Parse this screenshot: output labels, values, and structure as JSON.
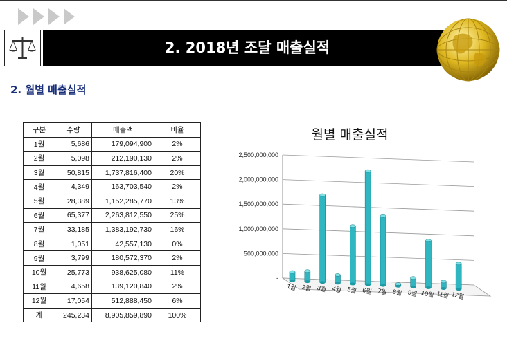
{
  "header": {
    "title": "2. 2018년 조달 매출실적"
  },
  "section_title": "2. 월별 매출실적",
  "table": {
    "headers": [
      "구분",
      "수량",
      "매출액",
      "비율"
    ],
    "rows": [
      [
        "1월",
        "5,686",
        "179,094,900",
        "2%"
      ],
      [
        "2월",
        "5,098",
        "212,190,130",
        "2%"
      ],
      [
        "3월",
        "50,815",
        "1,737,816,400",
        "20%"
      ],
      [
        "4월",
        "4,349",
        "163,703,540",
        "2%"
      ],
      [
        "5월",
        "28,389",
        "1,152,285,770",
        "13%"
      ],
      [
        "6월",
        "65,377",
        "2,263,812,550",
        "25%"
      ],
      [
        "7월",
        "33,185",
        "1,383,192,730",
        "16%"
      ],
      [
        "8월",
        "1,051",
        "42,557,130",
        "0%"
      ],
      [
        "9월",
        "3,799",
        "180,572,370",
        "2%"
      ],
      [
        "10월",
        "25,773",
        "938,625,080",
        "11%"
      ],
      [
        "11월",
        "4,658",
        "139,120,840",
        "2%"
      ],
      [
        "12월",
        "17,054",
        "512,888,450",
        "6%"
      ],
      [
        "계",
        "245,234",
        "8,905,859,890",
        "100%"
      ]
    ]
  },
  "chart_data": {
    "type": "bar",
    "title": "월별 매출실적",
    "categories": [
      "1월",
      "2월",
      "3월",
      "4월",
      "5월",
      "6월",
      "7월",
      "8월",
      "9월",
      "10월",
      "11월",
      "12월"
    ],
    "values": [
      179094900,
      212190130,
      1737816400,
      163703540,
      1152285770,
      2263812550,
      1383192730,
      42557130,
      180572370,
      938625080,
      139120840,
      512888450
    ],
    "ylim": [
      0,
      2500000000
    ],
    "yticks": [
      "-",
      "500,000,000",
      "1,000,000,000",
      "1,500,000,000",
      "2,000,000,000",
      "2,500,000,000"
    ],
    "bar_color": "#2fb6c0",
    "grid": true
  },
  "colors": {
    "title_bar": "#000000",
    "section_title": "#1a2f7a",
    "arrow": "#c9c9c9"
  }
}
